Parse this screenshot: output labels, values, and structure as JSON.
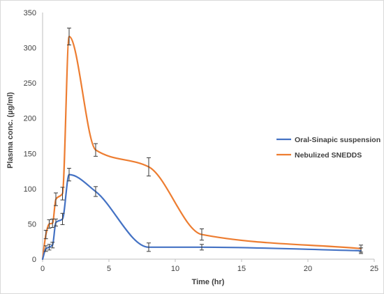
{
  "chart_data": {
    "type": "line",
    "title": "",
    "xlabel": "Time (hr)",
    "ylabel": "Plasma conc.  (µg/ml)",
    "xlim": [
      0,
      25
    ],
    "ylim": [
      0,
      350
    ],
    "xticks": [
      "0",
      "5",
      "10",
      "15",
      "20",
      "25"
    ],
    "yticks": [
      "0",
      "50",
      "100",
      "150",
      "200",
      "250",
      "300",
      "350"
    ],
    "grid": false,
    "legend_position": "right",
    "series": [
      {
        "name": "Oral-Sinapic suspension",
        "color": "#4472c4",
        "x": [
          0,
          0.25,
          0.5,
          0.75,
          1,
          1.5,
          2,
          4,
          8,
          12,
          24
        ],
        "y": [
          0,
          15,
          17,
          20,
          52,
          57,
          120,
          96,
          17,
          17,
          12
        ],
        "err": [
          0,
          4,
          4,
          4,
          5,
          8,
          9,
          7,
          6,
          4,
          4
        ]
      },
      {
        "name": "Nebulized SNEDDS",
        "color": "#ed7d31",
        "x": [
          0,
          0.25,
          0.5,
          0.75,
          1,
          1.5,
          2,
          4,
          8,
          12,
          24
        ],
        "y": [
          0,
          35,
          50,
          51,
          85,
          93,
          316,
          155,
          131,
          35,
          15
        ],
        "err": [
          0,
          6,
          6,
          6,
          9,
          9,
          12,
          9,
          13,
          8,
          5
        ]
      }
    ]
  }
}
